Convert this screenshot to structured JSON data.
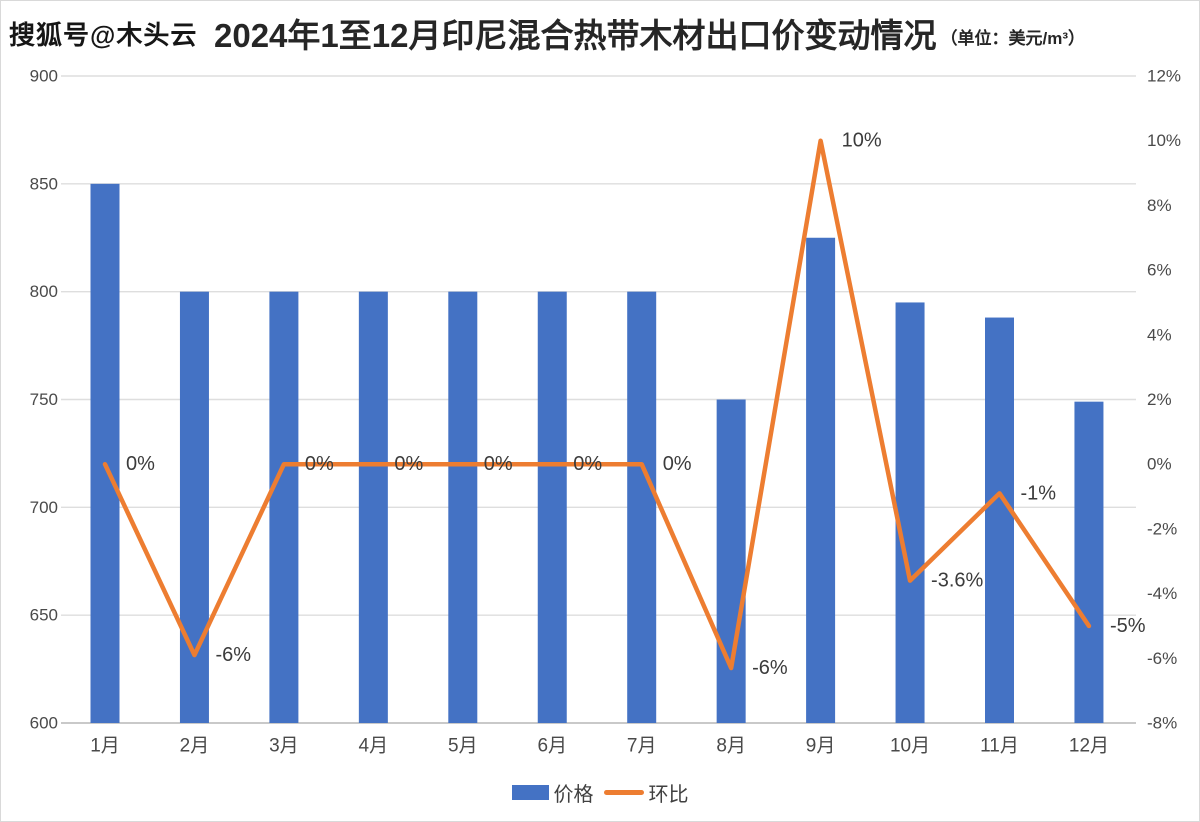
{
  "watermark": "搜狐号@木头云",
  "title": {
    "main": "2024年1至12月印尼混合热带木材出口价变动情况",
    "unit": "（单位：美元/m³）"
  },
  "legend": {
    "price_label": "价格",
    "mom_label": "环比"
  },
  "colors": {
    "bar": "#4472C4",
    "line": "#ED7D31",
    "gridline": "#dedede",
    "baseline": "#c9c9c9",
    "axis_text": "#4a4a4a",
    "data_label_text": "#3b3b3b"
  },
  "chart_data": {
    "type": "bar+line",
    "title": "2024年1至12月印尼混合热带木材出口价变动情况（单位：美元/m³）",
    "categories": [
      "1月",
      "2月",
      "3月",
      "4月",
      "5月",
      "6月",
      "7月",
      "8月",
      "9月",
      "10月",
      "11月",
      "12月"
    ],
    "series": [
      {
        "name": "价格",
        "type": "bar",
        "axis": "left",
        "color": "#4472C4",
        "values": [
          850,
          800,
          800,
          800,
          800,
          800,
          800,
          750,
          825,
          795,
          788,
          749
        ]
      },
      {
        "name": "环比",
        "type": "line",
        "axis": "right",
        "color": "#ED7D31",
        "values": [
          0,
          -5.9,
          0,
          0,
          0,
          0,
          0,
          -6.3,
          10,
          -3.6,
          -0.9,
          -5
        ],
        "labels": [
          "0%",
          "-6%",
          "0%",
          "0%",
          "0%",
          "0%",
          "0%",
          "-6%",
          "10%",
          "-3.6%",
          "-1%",
          "-5%"
        ]
      }
    ],
    "left_axis": {
      "min": 600,
      "max": 900,
      "ticks": [
        900,
        850,
        800,
        750,
        700,
        650,
        600
      ]
    },
    "right_axis": {
      "min": -8,
      "max": 12,
      "ticks": [
        "12%",
        "10%",
        "8%",
        "6%",
        "4%",
        "2%",
        "0%",
        "-2%",
        "-4%",
        "-6%",
        "-8%"
      ]
    },
    "grid": true,
    "legend_position": "bottom"
  }
}
